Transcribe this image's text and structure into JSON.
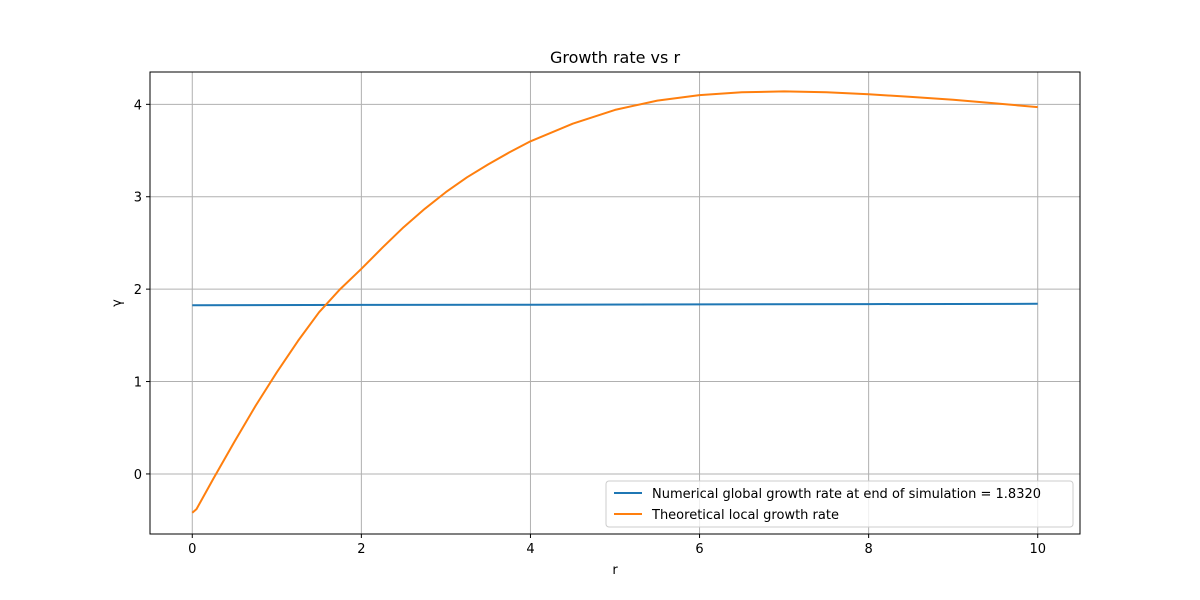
{
  "chart_data": {
    "type": "line",
    "title": "Growth rate vs r",
    "xlabel": "r",
    "ylabel": "γ",
    "xlim": [
      -0.5,
      10.5
    ],
    "ylim": [
      -0.65,
      4.35
    ],
    "xticks": [
      0,
      2,
      4,
      6,
      8,
      10
    ],
    "yticks": [
      0,
      1,
      2,
      3,
      4
    ],
    "grid": true,
    "legend_position": "lower-right",
    "series": [
      {
        "name": "Numerical global growth rate at end of simulation = 1.8320",
        "color": "#1f77b4",
        "x": [
          0,
          2,
          4,
          6,
          8,
          10
        ],
        "y": [
          1.826,
          1.829,
          1.832,
          1.835,
          1.838,
          1.841
        ]
      },
      {
        "name": "Theoretical local growth rate",
        "color": "#ff7f0e",
        "x": [
          0,
          0.05,
          0.25,
          0.5,
          0.75,
          1.0,
          1.25,
          1.5,
          1.75,
          2.0,
          2.25,
          2.5,
          2.75,
          3.0,
          3.25,
          3.5,
          3.75,
          4.0,
          4.5,
          5.0,
          5.5,
          6.0,
          6.5,
          7.0,
          7.5,
          8.0,
          8.5,
          9.0,
          9.5,
          10.0
        ],
        "y": [
          -0.42,
          -0.38,
          -0.05,
          0.35,
          0.74,
          1.1,
          1.44,
          1.75,
          2.0,
          2.22,
          2.45,
          2.67,
          2.87,
          3.05,
          3.21,
          3.35,
          3.48,
          3.6,
          3.79,
          3.94,
          4.04,
          4.1,
          4.13,
          4.14,
          4.13,
          4.11,
          4.08,
          4.05,
          4.01,
          3.97
        ]
      }
    ]
  }
}
